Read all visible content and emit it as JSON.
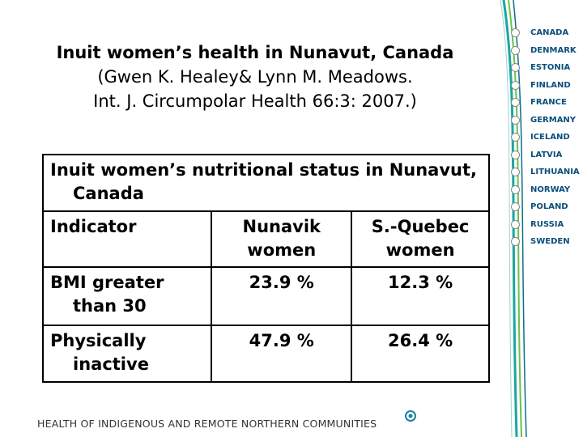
{
  "header": {
    "title": "Inuit women’s health in Nunavut, Canada",
    "citation": [
      "(Gwen K. Healey& Lynn M. Meadows.",
      "Int. J. Circumpolar Health 66:3: 2007.)"
    ]
  },
  "table": {
    "caption": "Inuit women’s nutritional status in Nunavut, Canada",
    "columns": [
      "Indicator",
      "Nunavik women",
      "S.-Quebec women"
    ],
    "rows": [
      [
        "BMI greater than 30",
        "23.9 %",
        "12.3 %"
      ],
      [
        "Physically inactive",
        "47.9 %",
        "26.4 %"
      ]
    ]
  },
  "sidebar": {
    "countries": [
      "CANADA",
      "DENMARK",
      "ESTONIA",
      "FINLAND",
      "FRANCE",
      "GERMANY",
      "ICELAND",
      "LATVIA",
      "LITHUANIA",
      "NORWAY",
      "POLAND",
      "RUSSIA",
      "SWEDEN"
    ]
  },
  "footer": {
    "text": "HEALTH OF INDIGENOUS AND REMOTE NORTHERN COMMUNITIES"
  }
}
